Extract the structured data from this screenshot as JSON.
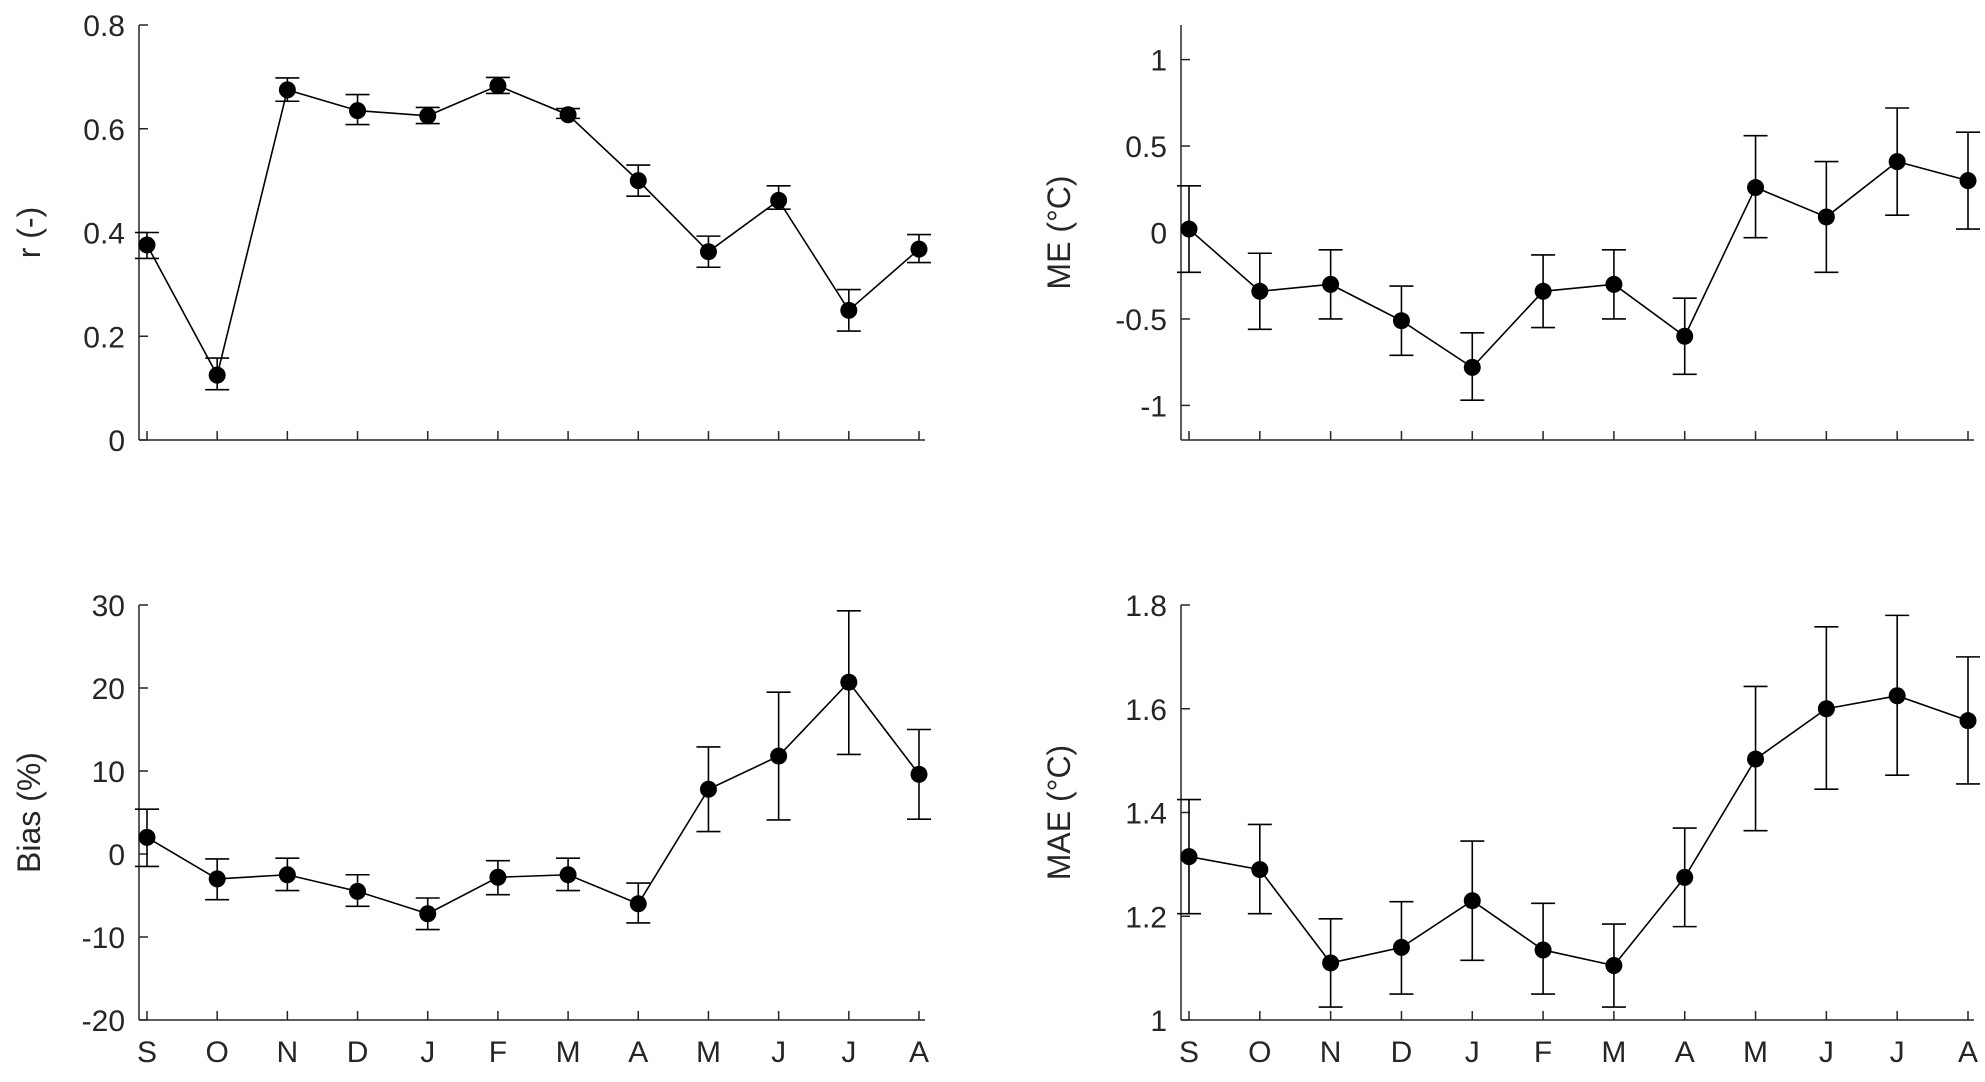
{
  "chart_data": [
    {
      "type": "line",
      "panel": "top-left",
      "ylabel": "r  (-)",
      "ylim": [
        0,
        0.8
      ],
      "yticks": [
        0,
        0.2,
        0.4,
        0.6,
        0.8
      ],
      "ytick_labels": [
        "0",
        "0.2",
        "0.4",
        "0.6",
        "0.8"
      ],
      "categories": [
        "S",
        "O",
        "N",
        "D",
        "J",
        "F",
        "M",
        "A",
        "M",
        "J",
        "J",
        "A"
      ],
      "show_xtick_labels": false,
      "grid": false,
      "values": [
        0.376,
        0.125,
        0.675,
        0.635,
        0.625,
        0.683,
        0.627,
        0.5,
        0.363,
        0.462,
        0.25,
        0.368
      ],
      "err_low": [
        0.35,
        0.097,
        0.653,
        0.608,
        0.61,
        0.668,
        0.62,
        0.47,
        0.333,
        0.445,
        0.21,
        0.342
      ],
      "err_high": [
        0.4,
        0.158,
        0.698,
        0.666,
        0.641,
        0.699,
        0.639,
        0.53,
        0.393,
        0.49,
        0.29,
        0.396
      ]
    },
    {
      "type": "line",
      "panel": "top-right",
      "ylabel": "ME  (°C)",
      "ylim": [
        -1.2,
        1.2
      ],
      "yticks": [
        -1,
        -0.5,
        0,
        0.5,
        1
      ],
      "ytick_labels": [
        "-1",
        "-0.5",
        "0",
        "0.5",
        "1"
      ],
      "categories": [
        "S",
        "O",
        "N",
        "D",
        "J",
        "F",
        "M",
        "A",
        "M",
        "J",
        "J",
        "A"
      ],
      "show_xtick_labels": false,
      "grid": false,
      "values": [
        0.02,
        -0.34,
        -0.3,
        -0.51,
        -0.78,
        -0.34,
        -0.3,
        -0.6,
        0.26,
        0.09,
        0.41,
        0.3
      ],
      "err_low": [
        -0.23,
        -0.56,
        -0.5,
        -0.71,
        -0.97,
        -0.55,
        -0.5,
        -0.82,
        -0.03,
        -0.23,
        0.1,
        0.02
      ],
      "err_high": [
        0.27,
        -0.12,
        -0.1,
        -0.31,
        -0.58,
        -0.13,
        -0.1,
        -0.38,
        0.56,
        0.41,
        0.72,
        0.58
      ]
    },
    {
      "type": "line",
      "panel": "bottom-left",
      "ylabel": "Bias  (%)",
      "ylim": [
        -20,
        30
      ],
      "yticks": [
        -20,
        -10,
        0,
        10,
        20,
        30
      ],
      "ytick_labels": [
        "-20",
        "-10",
        "0",
        "10",
        "20",
        "30"
      ],
      "categories": [
        "S",
        "O",
        "N",
        "D",
        "J",
        "F",
        "M",
        "A",
        "M",
        "J",
        "J",
        "A"
      ],
      "show_xtick_labels": true,
      "grid": false,
      "values": [
        2,
        -3,
        -2.5,
        -4.5,
        -7.2,
        -2.8,
        -2.5,
        -6,
        7.8,
        11.8,
        20.7,
        9.6
      ],
      "err_low": [
        -1.5,
        -5.5,
        -4.4,
        -6.3,
        -9.1,
        -4.9,
        -4.4,
        -8.3,
        2.7,
        4.1,
        12,
        4.2
      ],
      "err_high": [
        5.4,
        -0.6,
        -0.5,
        -2.5,
        -5.3,
        -0.8,
        -0.5,
        -3.5,
        12.9,
        19.5,
        29.3,
        15
      ]
    },
    {
      "type": "line",
      "panel": "bottom-right",
      "ylabel": "MAE  (°C)",
      "ylim": [
        1,
        1.8
      ],
      "yticks": [
        1,
        1.2,
        1.4,
        1.6,
        1.8
      ],
      "ytick_labels": [
        "1",
        "1.2",
        "1.4",
        "1.6",
        "1.8"
      ],
      "categories": [
        "S",
        "O",
        "N",
        "D",
        "J",
        "F",
        "M",
        "A",
        "M",
        "J",
        "J",
        "A"
      ],
      "show_xtick_labels": true,
      "grid": false,
      "values": [
        1.315,
        1.29,
        1.11,
        1.14,
        1.23,
        1.135,
        1.105,
        1.275,
        1.503,
        1.6,
        1.625,
        1.577
      ],
      "err_low": [
        1.205,
        1.205,
        1.025,
        1.05,
        1.115,
        1.05,
        1.025,
        1.18,
        1.365,
        1.445,
        1.472,
        1.455
      ],
      "err_high": [
        1.425,
        1.377,
        1.195,
        1.228,
        1.345,
        1.225,
        1.185,
        1.37,
        1.643,
        1.758,
        1.78,
        1.7
      ]
    }
  ]
}
